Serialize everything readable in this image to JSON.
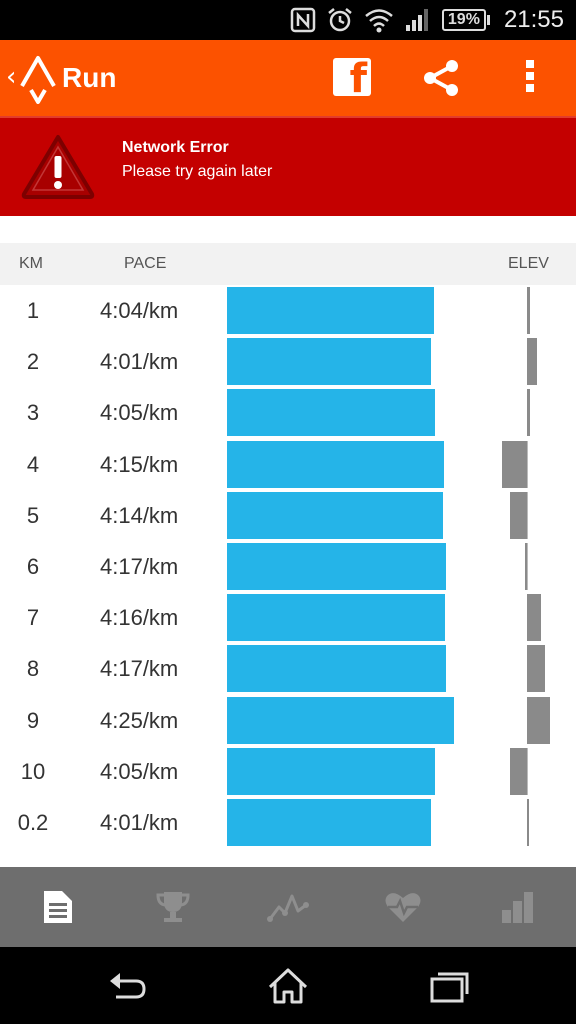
{
  "status_bar": {
    "icons": [
      "nfc-icon",
      "alarm-icon",
      "wifi-icon",
      "signal-icon"
    ],
    "battery": "19%",
    "time": "21:55"
  },
  "action_bar": {
    "title": "Run",
    "background": "#fc5200",
    "actions": [
      "facebook-icon",
      "share-icon",
      "overflow-menu-icon"
    ]
  },
  "error": {
    "title": "Network Error",
    "message": "Please try again later",
    "background": "#c40000"
  },
  "splits_header": {
    "km": "KM",
    "pace": "PACE",
    "elev": "ELEV"
  },
  "splits": [
    {
      "km": "1",
      "pace": "4:04/km",
      "pace_seconds": 244,
      "elev_change": 0.5
    },
    {
      "km": "2",
      "pace": "4:01/km",
      "pace_seconds": 241,
      "elev_change": 2
    },
    {
      "km": "3",
      "pace": "4:05/km",
      "pace_seconds": 245,
      "elev_change": 0.5
    },
    {
      "km": "4",
      "pace": "4:15/km",
      "pace_seconds": 255,
      "elev_change": -5
    },
    {
      "km": "5",
      "pace": "4:14/km",
      "pace_seconds": 254,
      "elev_change": -3.5
    },
    {
      "km": "6",
      "pace": "4:17/km",
      "pace_seconds": 257,
      "elev_change": -0.3
    },
    {
      "km": "7",
      "pace": "4:16/km",
      "pace_seconds": 256,
      "elev_change": 2.8
    },
    {
      "km": "8",
      "pace": "4:17/km",
      "pace_seconds": 257,
      "elev_change": 3.5
    },
    {
      "km": "9",
      "pace": "4:25/km",
      "pace_seconds": 265,
      "elev_change": 4.5
    },
    {
      "km": "10",
      "pace": "4:05/km",
      "pace_seconds": 245,
      "elev_change": -3.5
    },
    {
      "km": "0.2",
      "pace": "4:01/km",
      "pace_seconds": 241,
      "elev_change": 0.2
    }
  ],
  "colors": {
    "pace_bar": "#25b4e8",
    "elev_bar": "#8a8a8a"
  },
  "tab_bar": {
    "tabs": [
      {
        "icon": "overview-document-icon",
        "selected": true
      },
      {
        "icon": "trophy-icon",
        "selected": false
      },
      {
        "icon": "analysis-chart-icon",
        "selected": false
      },
      {
        "icon": "heart-rate-icon",
        "selected": false
      },
      {
        "icon": "bar-chart-icon",
        "selected": false
      }
    ]
  },
  "nav_bar": {
    "buttons": [
      "back-icon",
      "home-icon",
      "recent-apps-icon"
    ]
  }
}
